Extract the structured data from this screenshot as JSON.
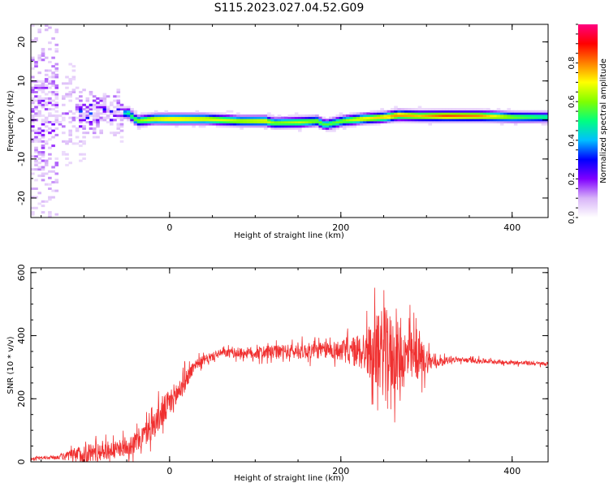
{
  "page": {
    "title": "S115.2023.027.04.52.G09"
  },
  "chart_data": [
    {
      "type": "heatmap",
      "title": "S115.2023.027.04.52.G09",
      "xlabel": "Height of straight line (km)",
      "ylabel": "Frequency (Hz)",
      "xlim": [
        -162,
        442
      ],
      "ylim": [
        -25,
        24.5
      ],
      "x_ticks": [
        0,
        200,
        400
      ],
      "y_ticks": [
        -20,
        -10,
        0,
        10,
        20
      ],
      "colorbar": {
        "label": "Normalized spectral amplitude",
        "range": [
          0,
          1
        ],
        "ticks": [
          "0.0",
          "0.2",
          "0.4",
          "0.6",
          "0.8"
        ],
        "tick_values": [
          0,
          0.2,
          0.4,
          0.6,
          0.8
        ],
        "colors": [
          "#ffffff",
          "#d8b4f8",
          "#8000ff",
          "#0000ff",
          "#00bfff",
          "#00ff80",
          "#80ff00",
          "#ffff00",
          "#ff8000",
          "#ff0000",
          "#ff0080"
        ]
      },
      "ridge": {
        "description_free": true,
        "x": [
          -60,
          -50,
          -40,
          -20,
          0,
          40,
          80,
          110,
          120,
          150,
          170,
          180,
          200,
          220,
          250,
          265,
          290,
          320,
          360,
          400,
          442
        ],
        "freq": [
          1.5,
          1.5,
          -0.5,
          0,
          0,
          0,
          -0.5,
          -0.5,
          -1,
          -0.8,
          -0.5,
          -1.5,
          -0.5,
          0,
          0.5,
          1.0,
          0.8,
          0.8,
          0.8,
          0.5,
          0.5
        ],
        "amplitude": [
          0.35,
          0.5,
          0.6,
          0.7,
          0.75,
          0.7,
          0.65,
          0.7,
          0.6,
          0.65,
          0.6,
          0.55,
          0.6,
          0.7,
          0.75,
          0.8,
          0.75,
          0.85,
          0.8,
          0.6,
          0.5
        ]
      }
    },
    {
      "type": "line",
      "xlabel": "Height of straight line (km)",
      "ylabel": "SNR (10 * v/v)",
      "xlim": [
        -162,
        442
      ],
      "ylim": [
        0,
        615
      ],
      "x_ticks": [
        0,
        200,
        400
      ],
      "y_ticks": [
        0,
        200,
        400,
        600
      ],
      "line_color": "#f03030",
      "envelope": {
        "x": [
          -162,
          -130,
          -100,
          -80,
          -60,
          -40,
          -20,
          -10,
          10,
          30,
          60,
          100,
          150,
          190,
          210,
          230,
          250,
          270,
          290,
          310,
          330,
          360,
          400,
          442
        ],
        "mean": [
          10,
          15,
          25,
          35,
          40,
          60,
          110,
          150,
          220,
          310,
          345,
          345,
          350,
          355,
          350,
          350,
          350,
          330,
          330,
          315,
          325,
          320,
          315,
          310
        ],
        "spread": [
          4,
          8,
          40,
          40,
          30,
          45,
          50,
          60,
          55,
          20,
          15,
          25,
          30,
          35,
          50,
          90,
          180,
          130,
          90,
          20,
          10,
          10,
          8,
          8
        ]
      }
    }
  ]
}
